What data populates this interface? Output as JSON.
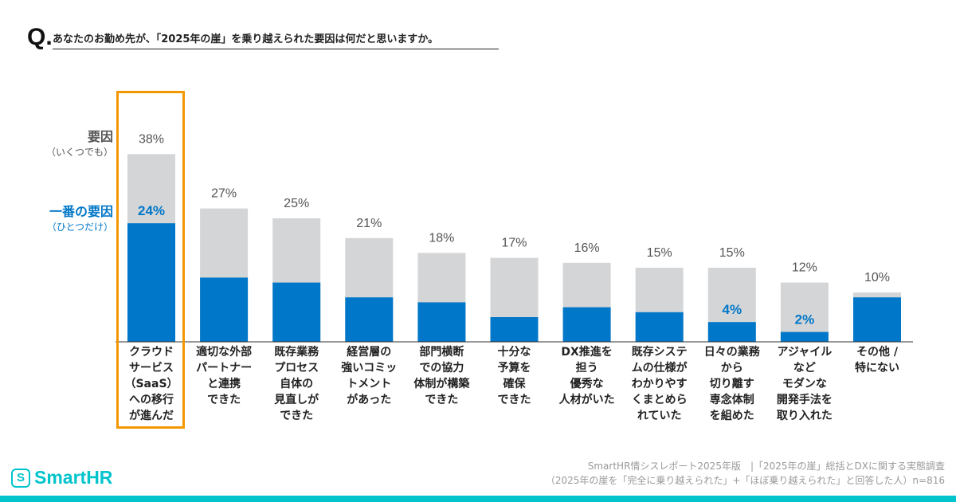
{
  "question": {
    "mark": "Q.",
    "text": "あなたのお勤め先が、「2025年の崖」を乗り越えられた要因は何だと思いますか。"
  },
  "legend": {
    "all": {
      "label": "要因",
      "sub": "（いくつでも）",
      "color": "#d4d5d7",
      "text_color": "#555555"
    },
    "top": {
      "label": "一番の要因",
      "sub": "（ひとつだけ）",
      "color": "#0077c8",
      "text_color": "#0077c8"
    }
  },
  "highlight_color": "#f39800",
  "chart_data": {
    "type": "bar",
    "stacking": "overlay",
    "categories": [
      "クラウド\nサービス\n（SaaS）\nへの移行\nが進んだ",
      "適切な外部\nパートナー\nと連携\nできた",
      "既存業務\nプロセス\n自体の\n見直しが\nできた",
      "経営層の\n強いコミッ\nトメント\nがあった",
      "部門横断\nでの協力\n体制が構築\nできた",
      "十分な\n予算を\n確保\nできた",
      "DX推進を\n担う\n優秀な\n人材がいた",
      "既存システ\nムの仕様が\nわかりやす\nくまとめら\nれていた",
      "日々の業務\nから\n切り離す\n専念体制\nを組めた",
      "アジャイル\nなど\nモダンな\n開発手法を\n取り入れた",
      "その他 /\n特にない"
    ],
    "series": [
      {
        "name": "要因（いくつでも）",
        "values": [
          38,
          27,
          25,
          21,
          18,
          17,
          16,
          15,
          15,
          12,
          10
        ]
      },
      {
        "name": "一番の要因（ひとつだけ）",
        "values": [
          24,
          13,
          12,
          9,
          8,
          5,
          7,
          6,
          4,
          2,
          9
        ]
      }
    ],
    "value_suffix": "%",
    "highlighted_category_index": 0,
    "ylim": [
      0,
      40
    ],
    "grid": false
  },
  "footer": {
    "logo": "SmartHR",
    "source_line1": "SmartHR情シスレポート2025年版　|「2025年の崖」総括とDXに関する実態調査",
    "source_line2": "（2025年の崖を「完全に乗り越えられた」+「ほぼ乗り越えられた」と回答した人）n=816"
  }
}
